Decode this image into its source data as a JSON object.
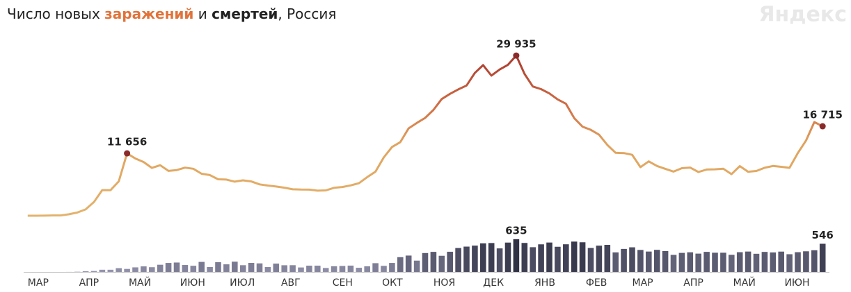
{
  "chart_data": {
    "type": "line_bar",
    "title_parts": [
      "Число новых",
      "и",
      ", Россия"
    ],
    "logo": "Яндекс",
    "xlim": [
      -2,
      98
    ],
    "xticks": [
      {
        "value": 0,
        "label": "МАР"
      },
      {
        "value": 6.2,
        "label": "АПР"
      },
      {
        "value": 12.2,
        "label": "МАЙ"
      },
      {
        "value": 18.4,
        "label": "ИЮН"
      },
      {
        "value": 24.4,
        "label": "ИЮЛ"
      },
      {
        "value": 30.6,
        "label": "АВГ"
      },
      {
        "value": 36.8,
        "label": "СЕН"
      },
      {
        "value": 42.8,
        "label": "ОКТ"
      },
      {
        "value": 49,
        "label": "НОЯ"
      },
      {
        "value": 55,
        "label": "ДЕК"
      },
      {
        "value": 61.2,
        "label": "ЯНВ"
      },
      {
        "value": 67.4,
        "label": "ФЕВ"
      },
      {
        "value": 73,
        "label": "МАР"
      },
      {
        "value": 79.2,
        "label": "АПР"
      },
      {
        "value": 85.2,
        "label": "МАЙ"
      },
      {
        "value": 91.4,
        "label": "ИЮН"
      }
    ],
    "ylim": [
      0,
      35000
    ],
    "y2lim": [
      0,
      700
    ],
    "series": [
      {
        "name": "заражений",
        "type": "line",
        "color": "#e3b36d",
        "color_high": "#a93a2e",
        "marker_color": "#8b2a2a",
        "values": [
          0,
          3,
          14,
          52,
          57,
          270,
          601,
          1175,
          2558,
          4785,
          4774,
          6411,
          11656,
          10699,
          10028,
          8926,
          9434,
          8371,
          8536,
          8984,
          8779,
          7843,
          7600,
          6800,
          6760,
          6368,
          6615,
          6406,
          5862,
          5635,
          5462,
          5241,
          4945,
          4892,
          4870,
          4676,
          4729,
          5205,
          5363,
          5670,
          6065,
          7212,
          8232,
          10888,
          12846,
          13754,
          16319,
          17347,
          18283,
          19768,
          21798,
          22778,
          23610,
          24326,
          26683,
          28145,
          26190,
          27328,
          28209,
          29935,
          26513,
          24150,
          23652,
          22850,
          21734,
          20921,
          18241,
          16643,
          16048,
          15144,
          13233,
          11753,
          11700,
          11385,
          9079,
          10145,
          9299,
          8769,
          8239,
          8885,
          8996,
          8173,
          8632,
          8672,
          8785,
          7770,
          9270,
          8217,
          8363,
          8951,
          9289,
          9145,
          8947,
          11699,
          14057,
          17500,
          16715
        ],
        "value_labels": [
          null,
          null,
          null,
          null,
          null,
          null,
          null,
          null,
          null,
          null,
          null,
          null,
          "11 656",
          null,
          null,
          null,
          null,
          null,
          null,
          null,
          null,
          null,
          null,
          null,
          null,
          null,
          null,
          null,
          null,
          null,
          null,
          null,
          null,
          null,
          null,
          null,
          null,
          null,
          null,
          null,
          null,
          null,
          null,
          null,
          null,
          null,
          null,
          null,
          null,
          null,
          null,
          null,
          null,
          null,
          null,
          null,
          null,
          null,
          null,
          "29 935",
          null,
          null,
          null,
          null,
          null,
          null,
          null,
          null,
          null,
          null,
          null,
          null,
          null,
          null,
          null,
          null,
          null,
          null,
          null,
          null,
          null,
          null,
          null,
          null,
          null,
          null,
          null,
          null,
          null,
          null,
          null,
          null,
          null,
          null,
          null,
          null,
          "16 715"
        ]
      },
      {
        "name": "смертей",
        "type": "bar",
        "axis": "y2",
        "color": "#9a9ab4",
        "color_high": "#26263a",
        "values": [
          0,
          0,
          0,
          0,
          0,
          1,
          4,
          13,
          18,
          42,
          42,
          72,
          58,
          88,
          107,
          91,
          139,
          174,
          182,
          134,
          119,
          194,
          95,
          188,
          147,
          198,
          130,
          175,
          165,
          94,
          161,
          129,
          130,
          86,
          121,
          121,
          76,
          110,
          115,
          122,
          80,
          108,
          169,
          117,
          174,
          286,
          317,
          219,
          366,
          389,
          313,
          391,
          463,
          491,
          510,
          554,
          560,
          456,
          569,
          635,
          562,
          479,
          535,
          570,
          488,
          536,
          588,
          575,
          464,
          509,
          525,
          378,
          446,
          477,
          426,
          395,
          428,
          405,
          330,
          369,
          380,
          355,
          389,
          372,
          372,
          331,
          382,
          395,
          352,
          388,
          377,
          394,
          343,
          382,
          400,
          420,
          546
        ],
        "value_labels": [
          null,
          null,
          null,
          null,
          null,
          null,
          null,
          null,
          null,
          null,
          null,
          null,
          null,
          null,
          null,
          null,
          null,
          null,
          null,
          null,
          null,
          null,
          null,
          null,
          null,
          null,
          null,
          null,
          null,
          null,
          null,
          null,
          null,
          null,
          null,
          null,
          null,
          null,
          null,
          null,
          null,
          null,
          null,
          null,
          null,
          null,
          null,
          null,
          null,
          null,
          null,
          null,
          null,
          null,
          null,
          null,
          null,
          null,
          null,
          "635",
          null,
          null,
          null,
          null,
          null,
          null,
          null,
          null,
          null,
          null,
          null,
          null,
          null,
          null,
          null,
          null,
          null,
          null,
          null,
          null,
          null,
          null,
          null,
          null,
          null,
          null,
          null,
          null,
          null,
          null,
          null,
          null,
          null,
          null,
          null,
          null,
          "546"
        ]
      }
    ]
  }
}
